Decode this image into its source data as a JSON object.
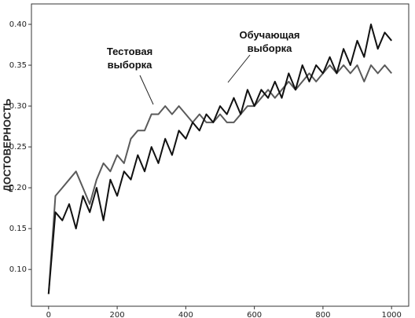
{
  "chart_data": {
    "type": "line",
    "ylabel": "ДОСТОВЕРНОСТЬ",
    "x": [
      0,
      20,
      40,
      60,
      80,
      100,
      120,
      140,
      160,
      180,
      200,
      220,
      240,
      260,
      280,
      300,
      320,
      340,
      360,
      380,
      400,
      420,
      440,
      460,
      480,
      500,
      520,
      540,
      560,
      580,
      600,
      620,
      640,
      660,
      680,
      700,
      720,
      740,
      760,
      780,
      800,
      820,
      840,
      860,
      880,
      900,
      920,
      940,
      960,
      980,
      1000
    ],
    "series": [
      {
        "name": "Обучающая выборка",
        "color": "#111111",
        "values": [
          0.07,
          0.17,
          0.16,
          0.18,
          0.15,
          0.19,
          0.17,
          0.2,
          0.16,
          0.21,
          0.19,
          0.22,
          0.21,
          0.24,
          0.22,
          0.25,
          0.23,
          0.26,
          0.24,
          0.27,
          0.26,
          0.28,
          0.27,
          0.29,
          0.28,
          0.3,
          0.29,
          0.31,
          0.29,
          0.32,
          0.3,
          0.32,
          0.31,
          0.33,
          0.31,
          0.34,
          0.32,
          0.35,
          0.33,
          0.35,
          0.34,
          0.36,
          0.34,
          0.37,
          0.35,
          0.38,
          0.36,
          0.4,
          0.37,
          0.39,
          0.38
        ]
      },
      {
        "name": "Тестовая выборка",
        "color": "#5a5a5a",
        "values": [
          0.07,
          0.19,
          0.2,
          0.21,
          0.22,
          0.2,
          0.18,
          0.21,
          0.23,
          0.22,
          0.24,
          0.23,
          0.26,
          0.27,
          0.27,
          0.29,
          0.29,
          0.3,
          0.29,
          0.3,
          0.29,
          0.28,
          0.29,
          0.28,
          0.28,
          0.29,
          0.28,
          0.28,
          0.29,
          0.3,
          0.3,
          0.31,
          0.32,
          0.31,
          0.32,
          0.33,
          0.32,
          0.33,
          0.34,
          0.33,
          0.34,
          0.35,
          0.34,
          0.35,
          0.34,
          0.35,
          0.33,
          0.35,
          0.34,
          0.35,
          0.34
        ]
      }
    ],
    "xlim": [
      -50,
      1050
    ],
    "ylim": [
      0.055,
      0.425
    ],
    "xticks": [
      0,
      200,
      400,
      600,
      800,
      1000
    ],
    "yticks": [
      {
        "value": 0.1,
        "label": "0.10"
      },
      0.15,
      {
        "value": 0.2,
        "label": "0.20"
      },
      0.25,
      {
        "value": 0.3,
        "label": "0.30"
      },
      0.35,
      {
        "value": 0.4,
        "label": "0.40"
      }
    ]
  }
}
